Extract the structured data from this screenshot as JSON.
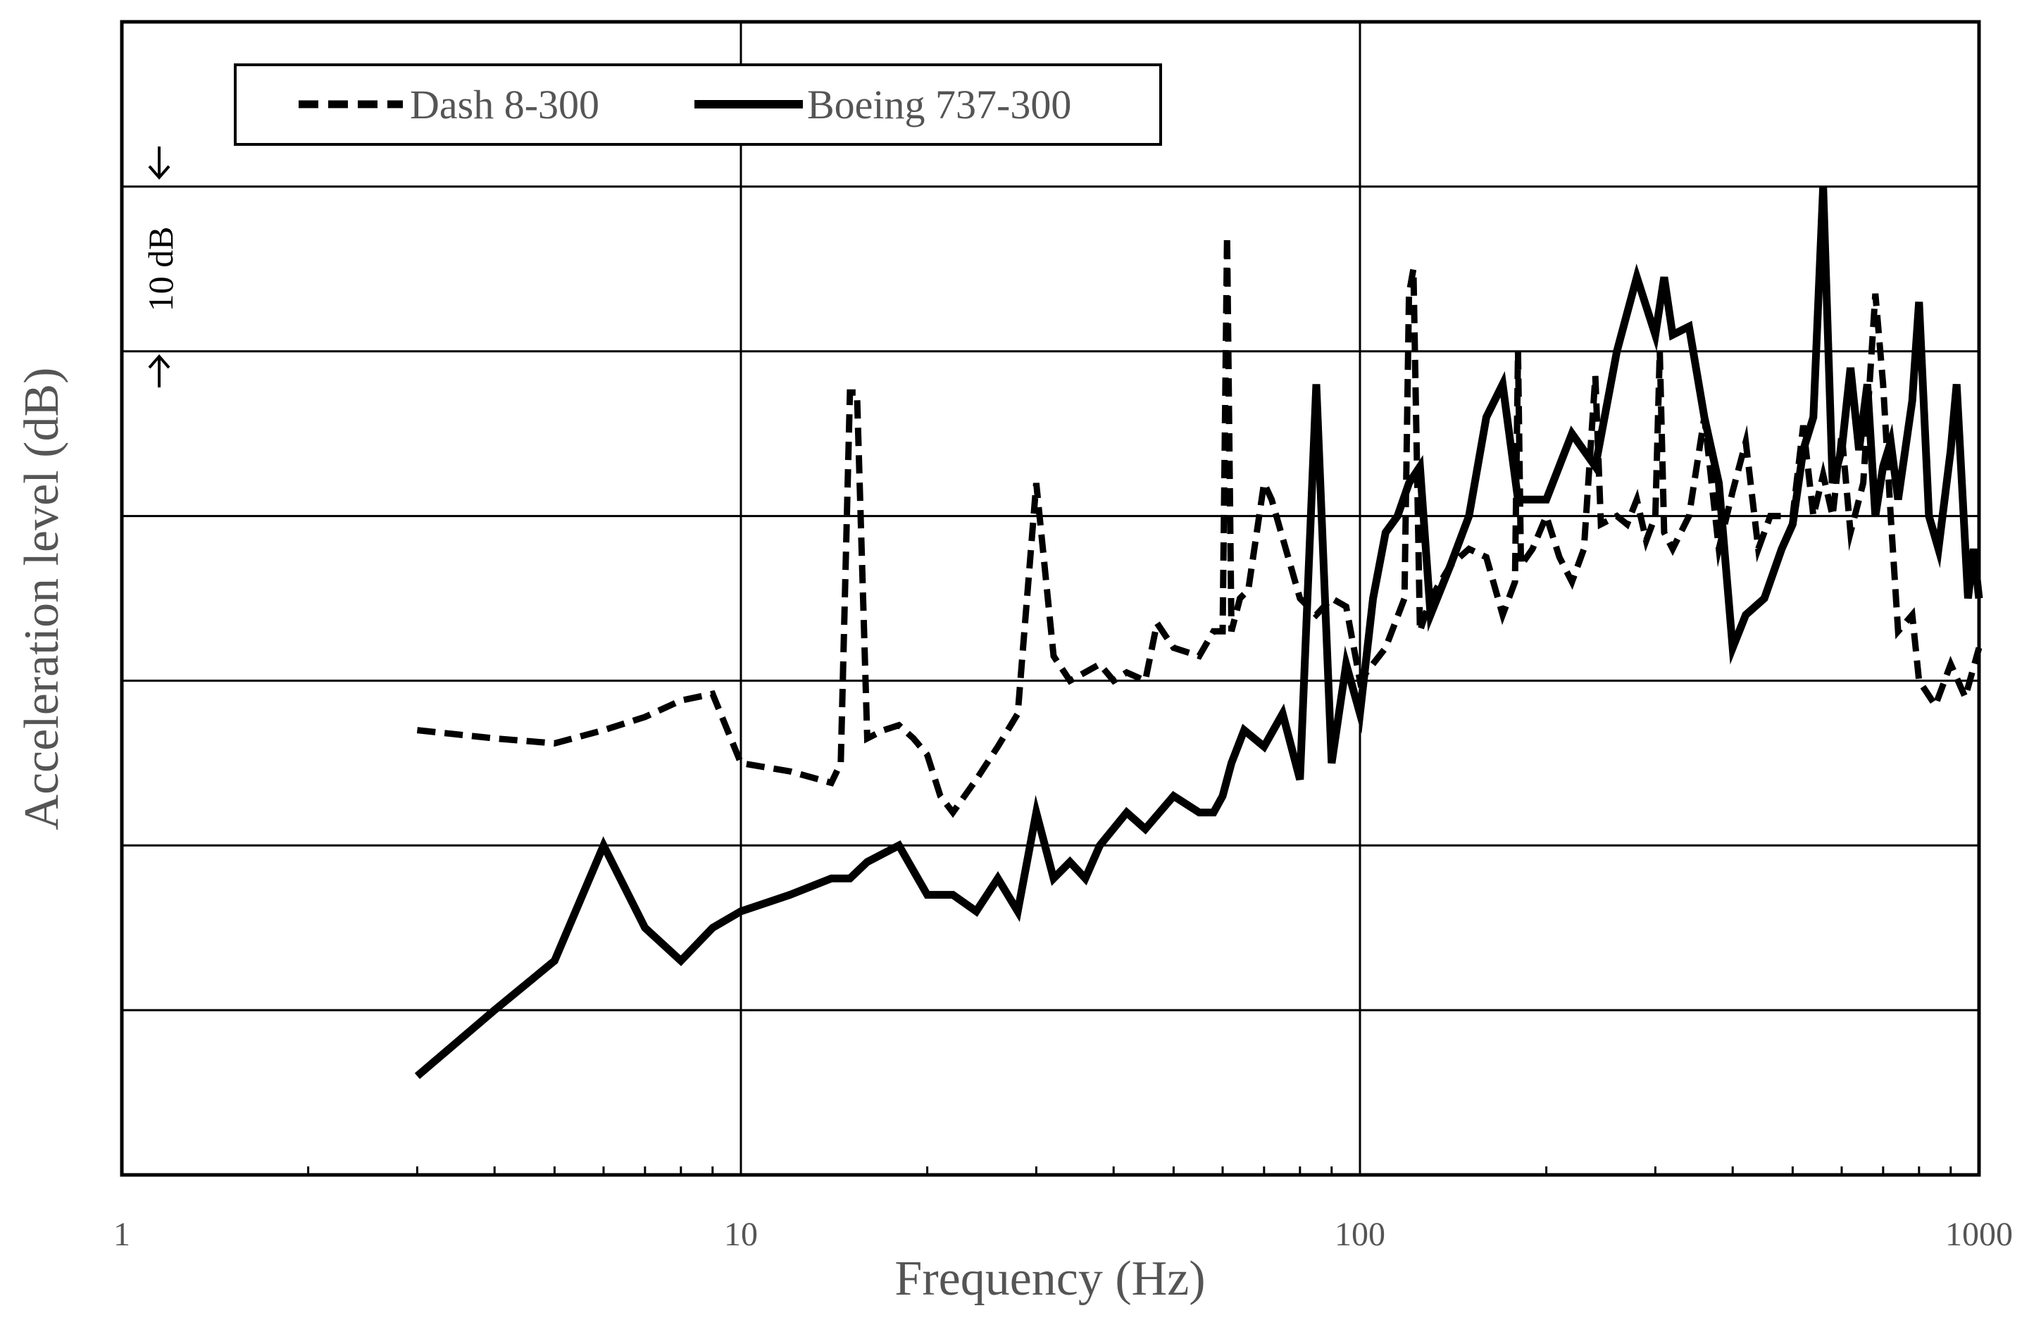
{
  "chart_data": {
    "type": "line",
    "title": "",
    "xlabel": "Frequency (Hz)",
    "ylabel": "Acceleration level (dB)",
    "x_scale": "log",
    "xlim": [
      1,
      1000
    ],
    "x_tick_labels": [
      "1",
      "10",
      "100",
      "1000"
    ],
    "x_ticks": [
      1,
      10,
      100,
      1000
    ],
    "ylim": [
      0,
      70
    ],
    "y_gridlines": [
      10,
      20,
      30,
      40,
      50,
      60,
      70
    ],
    "grid": true,
    "legend_position": "top-left",
    "scale_bar": {
      "label": "10 dB",
      "from": 50,
      "to": 60
    },
    "series": [
      {
        "name": "Dash 8-300",
        "style": "dashed",
        "color": "#000000",
        "points": [
          [
            3,
            27.0
          ],
          [
            4,
            26.5
          ],
          [
            5,
            26.2
          ],
          [
            6,
            27.0
          ],
          [
            7,
            27.8
          ],
          [
            8,
            28.8
          ],
          [
            9,
            29.2
          ],
          [
            10,
            25.0
          ],
          [
            12,
            24.5
          ],
          [
            14,
            23.8
          ],
          [
            14.5,
            25.0
          ],
          [
            15,
            47.5
          ],
          [
            15.4,
            47.5
          ],
          [
            16,
            26.5
          ],
          [
            17,
            27.0
          ],
          [
            18,
            27.3
          ],
          [
            19,
            26.5
          ],
          [
            20,
            25.5
          ],
          [
            21,
            23.0
          ],
          [
            22,
            22.0
          ],
          [
            24,
            24.0
          ],
          [
            26,
            26.0
          ],
          [
            28,
            28.0
          ],
          [
            30,
            42.0
          ],
          [
            32,
            31.5
          ],
          [
            34,
            30.0
          ],
          [
            38,
            31.0
          ],
          [
            40,
            30.0
          ],
          [
            42,
            30.5
          ],
          [
            45,
            30.0
          ],
          [
            47,
            33.5
          ],
          [
            50,
            32.0
          ],
          [
            55,
            31.5
          ],
          [
            58,
            33.0
          ],
          [
            60,
            33.0
          ],
          [
            61,
            57.0
          ],
          [
            62,
            33.0
          ],
          [
            64,
            35.0
          ],
          [
            66,
            35.5
          ],
          [
            70,
            42.0
          ],
          [
            72,
            41.0
          ],
          [
            80,
            35.0
          ],
          [
            85,
            34.0
          ],
          [
            90,
            35.0
          ],
          [
            95,
            34.5
          ],
          [
            100,
            30.0
          ],
          [
            110,
            32.0
          ],
          [
            118,
            35.0
          ],
          [
            120,
            53.5
          ],
          [
            122,
            55.0
          ],
          [
            125,
            33.0
          ],
          [
            130,
            35.0
          ],
          [
            140,
            37.0
          ],
          [
            150,
            38.0
          ],
          [
            160,
            37.5
          ],
          [
            170,
            34.0
          ],
          [
            178,
            36.0
          ],
          [
            180,
            50.0
          ],
          [
            182,
            37.0
          ],
          [
            190,
            38.0
          ],
          [
            200,
            40.0
          ],
          [
            210,
            37.5
          ],
          [
            220,
            36.0
          ],
          [
            230,
            38.0
          ],
          [
            240,
            48.5
          ],
          [
            245,
            39.5
          ],
          [
            260,
            40.0
          ],
          [
            270,
            39.5
          ],
          [
            280,
            41.0
          ],
          [
            290,
            38.5
          ],
          [
            300,
            40.0
          ],
          [
            305,
            50.0
          ],
          [
            310,
            39.0
          ],
          [
            320,
            38.0
          ],
          [
            340,
            40.0
          ],
          [
            360,
            46.0
          ],
          [
            380,
            38.0
          ],
          [
            400,
            41.5
          ],
          [
            420,
            44.5
          ],
          [
            440,
            38.0
          ],
          [
            460,
            40.0
          ],
          [
            500,
            40.0
          ],
          [
            520,
            45.5
          ],
          [
            540,
            40.0
          ],
          [
            560,
            42.5
          ],
          [
            580,
            40.0
          ],
          [
            600,
            45.0
          ],
          [
            620,
            39.0
          ],
          [
            650,
            42.0
          ],
          [
            680,
            53.5
          ],
          [
            700,
            48.0
          ],
          [
            720,
            40.0
          ],
          [
            740,
            33.0
          ],
          [
            780,
            34.0
          ],
          [
            800,
            30.0
          ],
          [
            850,
            28.5
          ],
          [
            900,
            31.0
          ],
          [
            950,
            29.0
          ],
          [
            1000,
            32.0
          ]
        ]
      },
      {
        "name": "Boeing 737-300",
        "style": "solid",
        "color": "#000000",
        "points": [
          [
            3,
            6.0
          ],
          [
            4,
            10.0
          ],
          [
            5,
            13.0
          ],
          [
            6,
            20.0
          ],
          [
            7,
            15.0
          ],
          [
            8,
            13.0
          ],
          [
            9,
            15.0
          ],
          [
            10,
            16.0
          ],
          [
            12,
            17.0
          ],
          [
            14,
            18.0
          ],
          [
            15,
            18.0
          ],
          [
            16,
            19.0
          ],
          [
            18,
            20.0
          ],
          [
            20,
            17.0
          ],
          [
            22,
            17.0
          ],
          [
            24,
            16.0
          ],
          [
            26,
            18.0
          ],
          [
            28,
            16.0
          ],
          [
            30,
            22.0
          ],
          [
            32,
            18.0
          ],
          [
            34,
            19.0
          ],
          [
            36,
            18.0
          ],
          [
            38,
            20.0
          ],
          [
            42,
            22.0
          ],
          [
            45,
            21.0
          ],
          [
            50,
            23.0
          ],
          [
            55,
            22.0
          ],
          [
            58,
            22.0
          ],
          [
            60,
            23.0
          ],
          [
            62,
            25.0
          ],
          [
            65,
            27.0
          ],
          [
            70,
            26.0
          ],
          [
            75,
            28.0
          ],
          [
            80,
            24.0
          ],
          [
            85,
            48.0
          ],
          [
            90,
            25.0
          ],
          [
            95,
            31.0
          ],
          [
            100,
            28.0
          ],
          [
            105,
            35.0
          ],
          [
            110,
            39.0
          ],
          [
            115,
            40.0
          ],
          [
            120,
            42.0
          ],
          [
            125,
            43.0
          ],
          [
            130,
            34.0
          ],
          [
            140,
            37.0
          ],
          [
            150,
            40.0
          ],
          [
            160,
            46.0
          ],
          [
            170,
            48.0
          ],
          [
            180,
            41.0
          ],
          [
            200,
            41.0
          ],
          [
            220,
            45.0
          ],
          [
            240,
            43.0
          ],
          [
            260,
            50.0
          ],
          [
            280,
            54.5
          ],
          [
            300,
            51.0
          ],
          [
            310,
            54.5
          ],
          [
            320,
            51.0
          ],
          [
            340,
            51.5
          ],
          [
            360,
            46.0
          ],
          [
            380,
            42.0
          ],
          [
            400,
            32.0
          ],
          [
            420,
            34.0
          ],
          [
            450,
            35.0
          ],
          [
            480,
            38.0
          ],
          [
            500,
            39.5
          ],
          [
            520,
            44.0
          ],
          [
            540,
            46.0
          ],
          [
            560,
            60.0
          ],
          [
            580,
            42.0
          ],
          [
            600,
            44.0
          ],
          [
            620,
            49.0
          ],
          [
            640,
            44.0
          ],
          [
            660,
            48.0
          ],
          [
            680,
            40.0
          ],
          [
            700,
            43.0
          ],
          [
            720,
            44.5
          ],
          [
            740,
            41.0
          ],
          [
            780,
            47.0
          ],
          [
            800,
            53.0
          ],
          [
            830,
            40.0
          ],
          [
            860,
            38.0
          ],
          [
            900,
            44.0
          ],
          [
            920,
            48.0
          ],
          [
            960,
            35.0
          ],
          [
            980,
            38.0
          ],
          [
            1000,
            35.0
          ]
        ]
      }
    ]
  }
}
